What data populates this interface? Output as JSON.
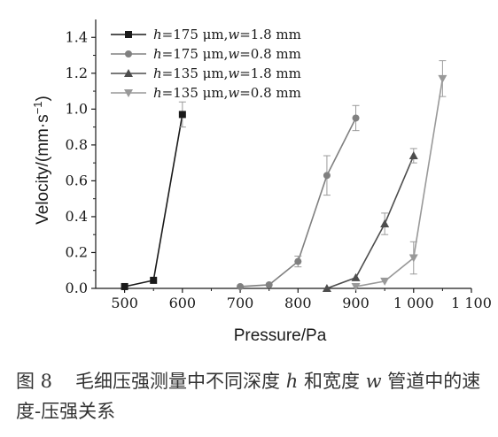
{
  "chart_data": {
    "type": "scatter",
    "xlabel": "Pressure/Pa",
    "ylabel_prefix": "Velocity/(mm·s",
    "ylabel_sup": "−1",
    "ylabel_suffix": ")",
    "xlim": [
      450,
      1100
    ],
    "ylim": [
      0,
      1.5
    ],
    "xticks": [
      500,
      600,
      700,
      800,
      900,
      1000,
      1100
    ],
    "xtick_labels": [
      "500",
      "600",
      "700",
      "800",
      "900",
      "1 000",
      "1 100"
    ],
    "yticks": [
      0,
      0.2,
      0.4,
      0.6,
      0.8,
      1.0,
      1.2,
      1.4
    ],
    "ytick_labels": [
      "0.0",
      "0.2",
      "0.4",
      "0.6",
      "0.8",
      "1.0",
      "1.2",
      "1.4"
    ],
    "grid": false,
    "legend_position": "top-left",
    "series": [
      {
        "name": "h=175 μm,w=1.8 mm",
        "legend": {
          "h": "175",
          "w": "1.8"
        },
        "marker": "square",
        "color": "#1a1a1a",
        "x": [
          500,
          550,
          600
        ],
        "y": [
          0.01,
          0.045,
          0.97
        ],
        "err": [
          0,
          0,
          0.07
        ]
      },
      {
        "name": "h=175 μm,w=0.8 mm",
        "legend": {
          "h": "175",
          "w": "0.8"
        },
        "marker": "circle",
        "color": "#808080",
        "x": [
          700,
          750,
          800,
          850,
          900
        ],
        "y": [
          0.01,
          0.02,
          0.15,
          0.63,
          0.95
        ],
        "err": [
          0,
          0,
          0.03,
          0.11,
          0.07
        ]
      },
      {
        "name": "h=135 μm,w=1.8 mm",
        "legend": {
          "h": "135",
          "w": "1.8"
        },
        "marker": "triangle-up",
        "color": "#4d4d4d",
        "x": [
          850,
          900,
          950,
          1000
        ],
        "y": [
          0.0,
          0.06,
          0.36,
          0.74
        ],
        "err": [
          0,
          0,
          0.06,
          0.04
        ]
      },
      {
        "name": "h=135 μm,w=0.8 mm",
        "legend": {
          "h": "135",
          "w": "0.8"
        },
        "marker": "triangle-down",
        "color": "#999999",
        "x": [
          900,
          950,
          1000,
          1050
        ],
        "y": [
          0.01,
          0.04,
          0.17,
          1.17
        ],
        "err": [
          0,
          0,
          0.09,
          0.1
        ]
      }
    ]
  },
  "caption": {
    "number": "图 8",
    "text_before_h": "毛细压强测量中不同深度 ",
    "h": "h",
    "text_mid": " 和宽度 ",
    "w": "w",
    "text_after_w": " 管道中的速度-压强关系"
  }
}
